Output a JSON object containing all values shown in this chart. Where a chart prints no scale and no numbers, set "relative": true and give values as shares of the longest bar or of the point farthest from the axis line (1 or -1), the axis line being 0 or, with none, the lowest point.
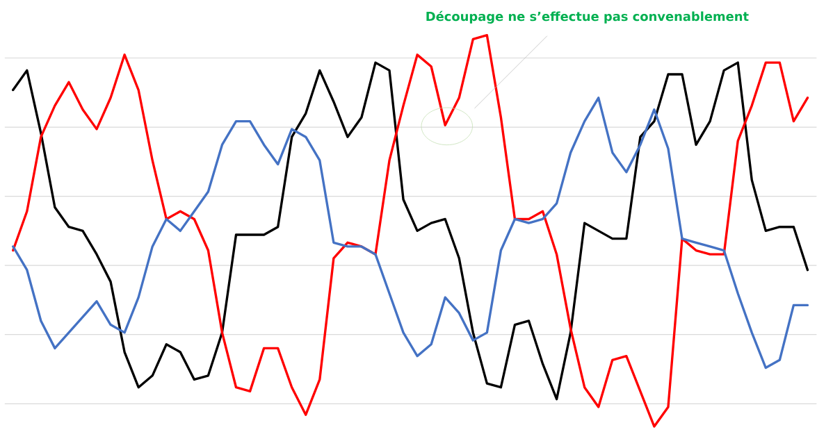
{
  "chart_data": {
    "type": "line",
    "relative": true,
    "grid": "y",
    "annotations": [
      "Découpage ne s’effectue pas convenablement"
    ],
    "categories": [
      null,
      null,
      null,
      null,
      null,
      null,
      null,
      null,
      null,
      null,
      null,
      null,
      null,
      null,
      null,
      null,
      null,
      null,
      null,
      null,
      null,
      null,
      null,
      null,
      null,
      null,
      null,
      null,
      null,
      null,
      null,
      null,
      null,
      null,
      null,
      null,
      null,
      null,
      null,
      null,
      null,
      null,
      null,
      null,
      null,
      null,
      null,
      null,
      null,
      null,
      null,
      null,
      null,
      null,
      null,
      null,
      null,
      null
    ],
    "series": [
      {
        "color": "#000000",
        "values": [
          0.86,
          0.91,
          0.75,
          0.56,
          0.51,
          0.5,
          0.44,
          0.37,
          0.19,
          0.1,
          0.13,
          0.21,
          0.19,
          0.12,
          0.13,
          0.24,
          0.49,
          0.49,
          0.49,
          0.51,
          0.74,
          0.8,
          0.91,
          0.83,
          0.74,
          0.79,
          0.93,
          0.91,
          0.58,
          0.5,
          0.52,
          0.53,
          0.43,
          0.24,
          0.11,
          0.1,
          0.26,
          0.27,
          0.16,
          0.07,
          0.24,
          0.52,
          0.5,
          0.48,
          0.48,
          0.74,
          0.78,
          0.9,
          0.9,
          0.72,
          0.78,
          0.91,
          0.93,
          0.63,
          0.5,
          0.51,
          0.51,
          0.4
        ]
      },
      {
        "color": "#ff0000",
        "values": [
          0.45,
          0.55,
          0.74,
          0.82,
          0.88,
          0.81,
          0.76,
          0.84,
          0.95,
          0.86,
          0.68,
          0.53,
          0.55,
          0.53,
          0.45,
          0.24,
          0.1,
          0.09,
          0.2,
          0.2,
          0.1,
          0.03,
          0.12,
          0.43,
          0.47,
          0.46,
          0.44,
          0.68,
          0.82,
          0.95,
          0.92,
          0.77,
          0.84,
          0.99,
          1.0,
          0.79,
          0.53,
          0.53,
          0.55,
          0.44,
          0.25,
          0.1,
          0.05,
          0.17,
          0.18,
          0.09,
          0.0,
          0.05,
          0.48,
          0.45,
          0.44,
          0.44,
          0.73,
          0.82,
          0.93,
          0.93,
          0.78,
          0.84
        ]
      },
      {
        "color": "#4472c4",
        "values": [
          0.46,
          0.4,
          0.27,
          0.2,
          0.24,
          0.28,
          0.32,
          0.26,
          0.24,
          0.33,
          0.46,
          0.53,
          0.5,
          0.55,
          0.6,
          0.72,
          0.78,
          0.78,
          0.72,
          0.67,
          0.76,
          0.74,
          0.68,
          0.47,
          0.46,
          0.46,
          0.44,
          0.34,
          0.24,
          0.18,
          0.21,
          0.33,
          0.29,
          0.22,
          0.24,
          0.45,
          0.53,
          0.52,
          0.53,
          0.57,
          0.7,
          0.78,
          0.84,
          0.7,
          0.65,
          0.72,
          0.81,
          0.71,
          0.48,
          0.47,
          0.46,
          0.45,
          0.34,
          0.24,
          0.15,
          0.17,
          0.31,
          0.31
        ]
      }
    ]
  }
}
